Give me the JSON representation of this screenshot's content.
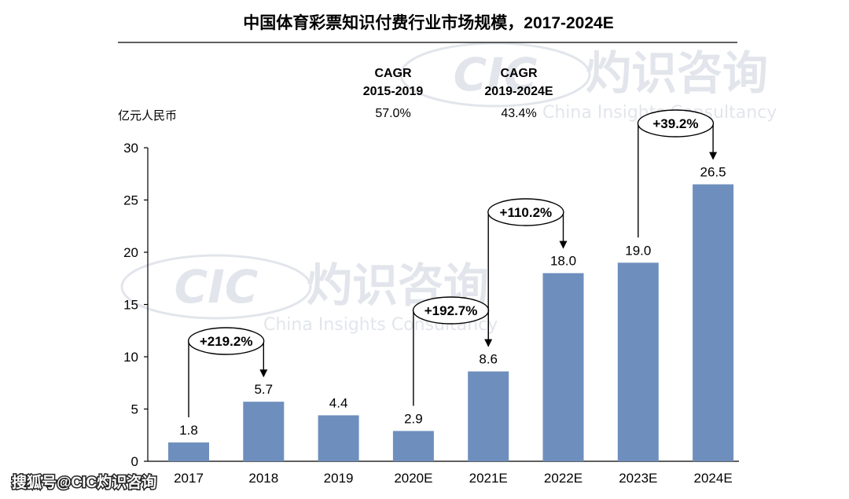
{
  "chart_data": {
    "type": "bar",
    "title": "中国体育彩票知识付费行业市场规模，2017-2024E",
    "unit_label": "亿元人民币",
    "categories": [
      "2017",
      "2018",
      "2019",
      "2020E",
      "2021E",
      "2022E",
      "2023E",
      "2024E"
    ],
    "values": [
      1.8,
      5.7,
      4.4,
      2.9,
      8.6,
      18.0,
      19.0,
      26.5
    ],
    "value_labels": [
      "1.8",
      "5.7",
      "4.4",
      "2.9",
      "8.6",
      "18.0",
      "19.0",
      "26.5"
    ],
    "ylim": [
      0,
      30
    ],
    "yticks": [
      0,
      5,
      10,
      15,
      20,
      25,
      30
    ],
    "bar_color": "#6e8fbd",
    "cagr": [
      {
        "label": "CAGR",
        "period": "2015-2019",
        "value": "57.0%"
      },
      {
        "label": "CAGR",
        "period": "2019-2024E",
        "value": "43.4%"
      }
    ],
    "growth_annotations": [
      {
        "label": "+219.2%",
        "from": "2017",
        "to": "2018"
      },
      {
        "label": "+192.7%",
        "from": "2020E",
        "to": "2021E"
      },
      {
        "label": "+110.2%",
        "from": "2021E",
        "to": "2022E"
      },
      {
        "label": "+39.2%",
        "from": "2023E",
        "to": "2024E"
      }
    ],
    "grid": false
  },
  "watermark": {
    "logo": "CIC",
    "cn": "灼识咨询",
    "en": "China Insights Consultancy"
  },
  "footer": {
    "credit": "搜狐号@CIC灼识咨询"
  }
}
